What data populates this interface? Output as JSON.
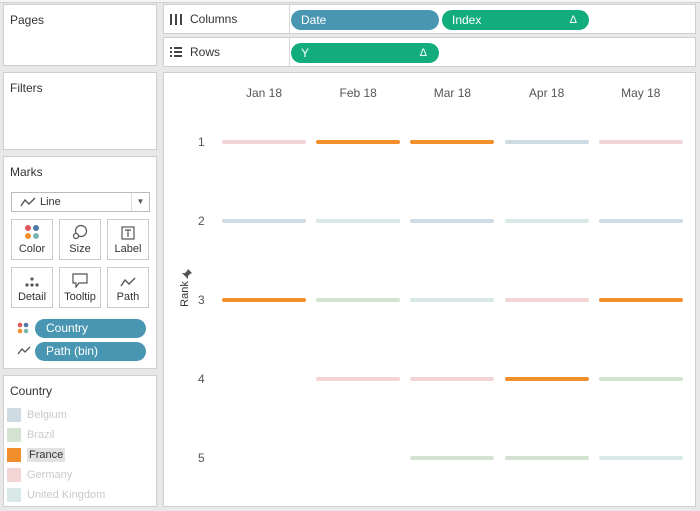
{
  "left": {
    "pages_title": "Pages",
    "filters_title": "Filters",
    "marks": {
      "title": "Marks",
      "mark_type": "Line",
      "buttons": {
        "color": "Color",
        "size": "Size",
        "label": "Label",
        "detail": "Detail",
        "tooltip": "Tooltip",
        "path": "Path"
      },
      "pills": {
        "color": "Country",
        "path": "Path (bin)"
      }
    },
    "legend": {
      "title": "Country",
      "items": [
        {
          "label": "Belgium",
          "color": "#cfdbe3"
        },
        {
          "label": "Brazil",
          "color": "#d4e3d1"
        },
        {
          "label": "France",
          "color": "#f28e2c"
        },
        {
          "label": "Germany",
          "color": "#f3d5d6"
        },
        {
          "label": "United Kingdom",
          "color": "#d7e8e6"
        }
      ]
    }
  },
  "shelves": {
    "columns": {
      "label": "Columns",
      "pills": [
        "Date",
        "Index"
      ],
      "delta": "Δ"
    },
    "rows": {
      "label": "Rows",
      "pills": [
        "Y"
      ],
      "delta": "Δ"
    }
  },
  "chart_data": {
    "type": "line",
    "x": [
      "Jan 18",
      "Feb 18",
      "Mar 18",
      "Apr 18",
      "May 18"
    ],
    "ylabel": "Rank",
    "y_ticks": [
      1,
      2,
      3,
      4,
      5
    ],
    "series": [
      {
        "name": "Belgium",
        "color": "#cfdbe3",
        "values": [
          2,
          2,
          2,
          1,
          2
        ]
      },
      {
        "name": "Brazil",
        "color": "#d4e3d1",
        "values": [
          null,
          3,
          5,
          5,
          4
        ]
      },
      {
        "name": "France",
        "color": "#f28e2c",
        "values": [
          3,
          1,
          1,
          4,
          3
        ]
      },
      {
        "name": "Germany",
        "color": "#f3d5d6",
        "values": [
          1,
          4,
          4,
          3,
          1
        ]
      },
      {
        "name": "United Kingdom",
        "color": "#d7e8e6",
        "values": [
          null,
          2,
          3,
          2,
          5
        ]
      }
    ]
  }
}
